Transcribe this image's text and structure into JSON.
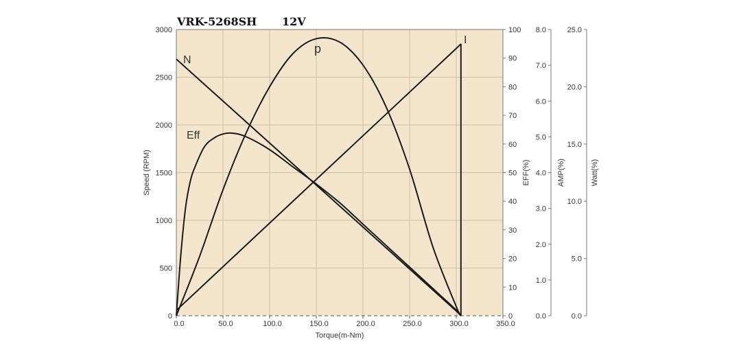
{
  "header": {
    "model": "VRK-5268SH",
    "voltage": "12V"
  },
  "colors": {
    "plot_bg": "#f3e6cc",
    "grid": "#cdbfa5",
    "curve": "#1a1a1a"
  },
  "chart_data": {
    "type": "line",
    "xlabel": "Torque(m-Nm)",
    "xlim": [
      0,
      350
    ],
    "x_ticks": [
      "0.0",
      "50.0",
      "100.0",
      "150.0",
      "200.0",
      "250.0",
      "300.0",
      "350.0"
    ],
    "axes": [
      {
        "id": "speed",
        "label": "Speed (RPM)",
        "range": [
          0,
          3000
        ],
        "ticks": [
          "0",
          "500",
          "1000",
          "1500",
          "2000",
          "2500",
          "3000"
        ]
      },
      {
        "id": "eff",
        "label": "EFF(%)",
        "range": [
          0,
          100
        ],
        "ticks": [
          "0",
          "10",
          "20",
          "30",
          "40",
          "50",
          "60",
          "70",
          "80",
          "90",
          "100"
        ]
      },
      {
        "id": "amp",
        "label": "AMP(%)",
        "range": [
          0,
          8
        ],
        "ticks": [
          "0.0",
          "1.0",
          "2.0",
          "3.0",
          "4.0",
          "5.0",
          "6.0",
          "7.0",
          "8.0"
        ]
      },
      {
        "id": "watt",
        "label": "Watt(%)",
        "range": [
          0,
          25
        ],
        "ticks": [
          "0.0",
          "5.0",
          "10.0",
          "15.0",
          "20.0",
          "25.0"
        ]
      }
    ],
    "grid": true,
    "series": [
      {
        "name": "N",
        "axis": "speed",
        "x": [
          0,
          50,
          100,
          150,
          200,
          250,
          300,
          305
        ],
        "y": [
          2690,
          2250,
          1810,
          1370,
          930,
          490,
          50,
          0
        ]
      },
      {
        "name": "I",
        "axis": "amp",
        "x": [
          0,
          50,
          100,
          150,
          200,
          250,
          300,
          305
        ],
        "y": [
          0.15,
          1.37,
          2.59,
          3.81,
          5.03,
          6.25,
          7.47,
          7.6
        ]
      },
      {
        "name": "p",
        "axis": "watt",
        "x": [
          0,
          25,
          50,
          75,
          100,
          125,
          150,
          175,
          200,
          225,
          250,
          275,
          300,
          305
        ],
        "y": [
          0,
          5.2,
          11.0,
          16.0,
          20.0,
          22.9,
          24.2,
          23.9,
          21.9,
          18.2,
          12.8,
          6.0,
          0.8,
          0
        ]
      },
      {
        "name": "Eff",
        "axis": "eff",
        "x": [
          0,
          5,
          10,
          15,
          20,
          30,
          40,
          50,
          60,
          75,
          100,
          125,
          150,
          175,
          200,
          225,
          250,
          275,
          300,
          305
        ],
        "y": [
          0,
          22,
          38,
          47,
          52,
          59,
          62,
          63.5,
          63.8,
          62.5,
          58,
          52,
          46,
          39.5,
          32,
          24.5,
          17,
          9.5,
          2,
          0
        ]
      }
    ]
  }
}
